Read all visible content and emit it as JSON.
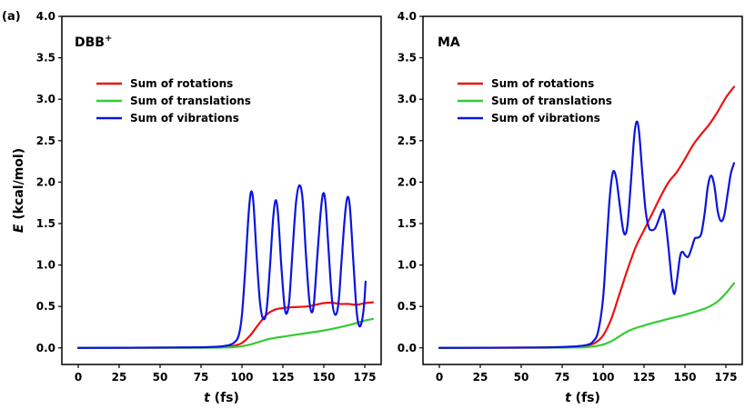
{
  "figure": {
    "panel_tag": "(a)"
  },
  "colors": {
    "rotations": "#ee1111",
    "translations": "#33cc33",
    "vibrations": "#0a14dd"
  },
  "chart_data": [
    {
      "type": "line",
      "title": "DBB",
      "title_superscript": "+",
      "xlabel_italic": "t",
      "xlabel_unit": "(fs)",
      "ylabel_italic": "E",
      "ylabel_unit": "(kcal/mol)",
      "xlim": [
        -10,
        185
      ],
      "ylim": [
        -0.2,
        4.0
      ],
      "xticks": [
        "0",
        "25",
        "50",
        "75",
        "100",
        "125",
        "150",
        "175"
      ],
      "yticks": [
        "0.0",
        "0.5",
        "1.0",
        "1.5",
        "2.0",
        "2.5",
        "3.0",
        "3.5",
        "4.0"
      ],
      "legend_position": "upper-left",
      "series": [
        {
          "name": "Sum of rotations",
          "color_key": "rotations",
          "points": [
            [
              0,
              0
            ],
            [
              60,
              0.003
            ],
            [
              80,
              0.008
            ],
            [
              90,
              0.015
            ],
            [
              95,
              0.025
            ],
            [
              100,
              0.06
            ],
            [
              105,
              0.15
            ],
            [
              110,
              0.28
            ],
            [
              115,
              0.4
            ],
            [
              120,
              0.46
            ],
            [
              125,
              0.48
            ],
            [
              130,
              0.49
            ],
            [
              140,
              0.5
            ],
            [
              145,
              0.52
            ],
            [
              150,
              0.54
            ],
            [
              155,
              0.545
            ],
            [
              160,
              0.53
            ],
            [
              165,
              0.53
            ],
            [
              170,
              0.52
            ],
            [
              175,
              0.54
            ],
            [
              180,
              0.55
            ]
          ]
        },
        {
          "name": "Sum of translations",
          "color_key": "translations",
          "points": [
            [
              0,
              0
            ],
            [
              80,
              0.003
            ],
            [
              95,
              0.01
            ],
            [
              100,
              0.02
            ],
            [
              105,
              0.04
            ],
            [
              110,
              0.07
            ],
            [
              115,
              0.1
            ],
            [
              120,
              0.12
            ],
            [
              130,
              0.15
            ],
            [
              140,
              0.18
            ],
            [
              150,
              0.21
            ],
            [
              160,
              0.25
            ],
            [
              170,
              0.3
            ],
            [
              175,
              0.33
            ],
            [
              180,
              0.35
            ]
          ]
        },
        {
          "name": "Sum of vibrations",
          "color_key": "vibrations",
          "points": [
            [
              0,
              0
            ],
            [
              60,
              0.005
            ],
            [
              80,
              0.01
            ],
            [
              90,
              0.025
            ],
            [
              95,
              0.06
            ],
            [
              98,
              0.15
            ],
            [
              100,
              0.4
            ],
            [
              102,
              0.95
            ],
            [
              104,
              1.6
            ],
            [
              105.5,
              1.88
            ],
            [
              107,
              1.75
            ],
            [
              109,
              1.1
            ],
            [
              111,
              0.55
            ],
            [
              113,
              0.35
            ],
            [
              115,
              0.45
            ],
            [
              117,
              0.95
            ],
            [
              119,
              1.55
            ],
            [
              120.5,
              1.78
            ],
            [
              122,
              1.62
            ],
            [
              124,
              1.0
            ],
            [
              126,
              0.5
            ],
            [
              127.5,
              0.42
            ],
            [
              129,
              0.6
            ],
            [
              131,
              1.2
            ],
            [
              133,
              1.75
            ],
            [
              135,
              1.96
            ],
            [
              137,
              1.8
            ],
            [
              139,
              1.15
            ],
            [
              141,
              0.6
            ],
            [
              142.5,
              0.43
            ],
            [
              144,
              0.55
            ],
            [
              146,
              1.1
            ],
            [
              148,
              1.62
            ],
            [
              149.5,
              1.86
            ],
            [
              151,
              1.75
            ],
            [
              153,
              1.15
            ],
            [
              155,
              0.58
            ],
            [
              157,
              0.4
            ],
            [
              159,
              0.55
            ],
            [
              161,
              1.1
            ],
            [
              163,
              1.62
            ],
            [
              164.5,
              1.82
            ],
            [
              166,
              1.68
            ],
            [
              168,
              1.05
            ],
            [
              170,
              0.45
            ],
            [
              171.5,
              0.27
            ],
            [
              173,
              0.3
            ],
            [
              174.5,
              0.5
            ],
            [
              175.5,
              0.8
            ]
          ]
        }
      ]
    },
    {
      "type": "line",
      "title": "MA",
      "xlabel_italic": "t",
      "xlabel_unit": "(fs)",
      "xlim": [
        -10,
        185
      ],
      "ylim": [
        -0.2,
        4.0
      ],
      "xticks": [
        "0",
        "25",
        "50",
        "75",
        "100",
        "125",
        "150",
        "175"
      ],
      "yticks": [
        "0.0",
        "0.5",
        "1.0",
        "1.5",
        "2.0",
        "2.5",
        "3.0",
        "3.5",
        "4.0"
      ],
      "legend_position": "upper-left",
      "series": [
        {
          "name": "Sum of rotations",
          "color_key": "rotations",
          "points": [
            [
              0,
              0
            ],
            [
              60,
              0.003
            ],
            [
              80,
              0.01
            ],
            [
              90,
              0.03
            ],
            [
              95,
              0.06
            ],
            [
              100,
              0.15
            ],
            [
              105,
              0.35
            ],
            [
              110,
              0.65
            ],
            [
              115,
              0.95
            ],
            [
              120,
              1.22
            ],
            [
              125,
              1.42
            ],
            [
              130,
              1.62
            ],
            [
              135,
              1.82
            ],
            [
              140,
              2.0
            ],
            [
              145,
              2.12
            ],
            [
              150,
              2.28
            ],
            [
              155,
              2.45
            ],
            [
              160,
              2.58
            ],
            [
              165,
              2.7
            ],
            [
              170,
              2.85
            ],
            [
              175,
              3.02
            ],
            [
              180,
              3.15
            ]
          ]
        },
        {
          "name": "Sum of translations",
          "color_key": "translations",
          "points": [
            [
              0,
              0
            ],
            [
              80,
              0.005
            ],
            [
              90,
              0.01
            ],
            [
              95,
              0.02
            ],
            [
              100,
              0.04
            ],
            [
              105,
              0.08
            ],
            [
              110,
              0.14
            ],
            [
              115,
              0.2
            ],
            [
              120,
              0.24
            ],
            [
              125,
              0.27
            ],
            [
              130,
              0.3
            ],
            [
              140,
              0.35
            ],
            [
              150,
              0.4
            ],
            [
              160,
              0.46
            ],
            [
              165,
              0.5
            ],
            [
              170,
              0.56
            ],
            [
              175,
              0.66
            ],
            [
              180,
              0.78
            ]
          ]
        },
        {
          "name": "Sum of vibrations",
          "color_key": "vibrations",
          "points": [
            [
              0,
              0
            ],
            [
              60,
              0.005
            ],
            [
              80,
              0.015
            ],
            [
              90,
              0.035
            ],
            [
              94,
              0.08
            ],
            [
              97,
              0.2
            ],
            [
              100,
              0.6
            ],
            [
              102,
              1.2
            ],
            [
              104,
              1.8
            ],
            [
              106,
              2.12
            ],
            [
              108,
              2.05
            ],
            [
              110,
              1.75
            ],
            [
              112,
              1.45
            ],
            [
              113.5,
              1.37
            ],
            [
              115,
              1.5
            ],
            [
              117,
              2.0
            ],
            [
              119,
              2.55
            ],
            [
              120.5,
              2.73
            ],
            [
              122,
              2.6
            ],
            [
              124,
              2.1
            ],
            [
              126,
              1.65
            ],
            [
              128,
              1.45
            ],
            [
              130,
              1.42
            ],
            [
              132,
              1.45
            ],
            [
              134,
              1.55
            ],
            [
              136,
              1.65
            ],
            [
              137,
              1.66
            ],
            [
              138,
              1.55
            ],
            [
              140,
              1.2
            ],
            [
              142,
              0.8
            ],
            [
              143.5,
              0.65
            ],
            [
              145,
              0.8
            ],
            [
              147,
              1.1
            ],
            [
              148.5,
              1.16
            ],
            [
              150,
              1.12
            ],
            [
              152,
              1.1
            ],
            [
              154,
              1.2
            ],
            [
              156,
              1.32
            ],
            [
              158,
              1.33
            ],
            [
              160,
              1.38
            ],
            [
              162,
              1.62
            ],
            [
              164,
              1.95
            ],
            [
              166,
              2.08
            ],
            [
              168,
              1.95
            ],
            [
              170,
              1.65
            ],
            [
              172,
              1.53
            ],
            [
              174,
              1.6
            ],
            [
              176,
              1.85
            ],
            [
              178,
              2.1
            ],
            [
              180,
              2.23
            ]
          ]
        }
      ]
    }
  ]
}
